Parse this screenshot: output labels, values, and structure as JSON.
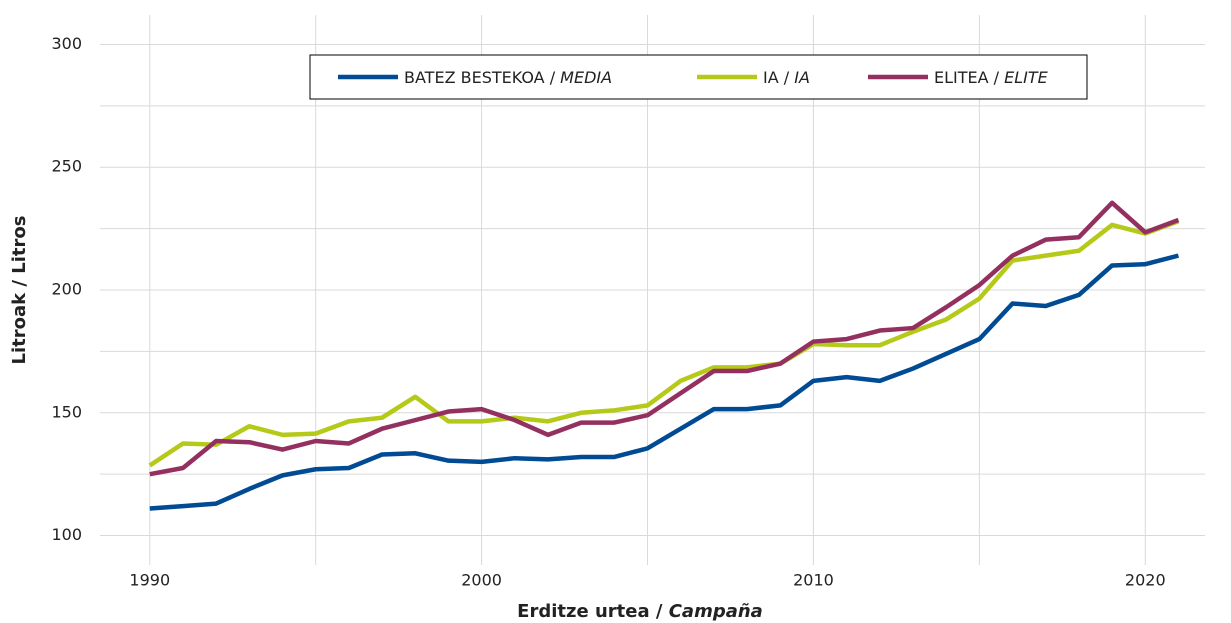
{
  "chart_data": {
    "type": "line",
    "x_label": "Erditze urtea / Campaña",
    "y_label": "Litroak / Litros",
    "x": [
      1990,
      1991,
      1992,
      1993,
      1994,
      1995,
      1996,
      1997,
      1998,
      1999,
      2000,
      2001,
      2002,
      2003,
      2004,
      2005,
      2006,
      2007,
      2008,
      2009,
      2010,
      2011,
      2012,
      2013,
      2014,
      2015,
      2016,
      2017,
      2018,
      2019,
      2020,
      2021
    ],
    "series": [
      {
        "name": "BATEZ BESTEKOA / MEDIA",
        "color": "#004b93",
        "values": [
          111,
          112,
          113,
          119,
          124.5,
          127,
          127.5,
          133,
          133.5,
          130.5,
          130,
          131.5,
          131,
          132,
          132,
          135.5,
          143.5,
          151.5,
          151.5,
          153,
          163,
          164.5,
          163,
          168,
          174,
          180,
          194.5,
          193.5,
          198,
          210,
          210.5,
          214
        ]
      },
      {
        "name": "IA / IA",
        "color": "#b5c918",
        "values": [
          128.5,
          137.5,
          137,
          144.5,
          141,
          141.5,
          146.5,
          148,
          156.5,
          146.5,
          146.5,
          148,
          146.5,
          150,
          151,
          153,
          163,
          168.5,
          168.5,
          170,
          178,
          177.5,
          177.5,
          183,
          188,
          196.5,
          212,
          214,
          216,
          226.5,
          223,
          228
        ]
      },
      {
        "name": "ELITEA / ELITE",
        "color": "#94305f",
        "values": [
          125,
          127.5,
          138.5,
          138,
          135,
          138.5,
          137.5,
          143.5,
          147,
          150.5,
          151.5,
          147,
          141,
          146,
          146,
          149,
          158,
          167,
          167,
          170,
          179,
          180,
          183.5,
          184.5,
          193,
          202,
          214,
          220.5,
          221.5,
          235.5,
          223.5,
          228.5
        ]
      }
    ],
    "xlim": [
      1988.5,
      2021.8
    ],
    "ylim": [
      88,
      312
    ],
    "xticks": [
      1990,
      2000,
      2010,
      2020
    ],
    "yticks": [
      100,
      150,
      200,
      250,
      300
    ],
    "minor_xticks": [
      1995,
      2005,
      2015
    ],
    "minor_yticks": [
      125,
      175,
      225,
      275
    ],
    "grid": true,
    "legend": "top"
  }
}
